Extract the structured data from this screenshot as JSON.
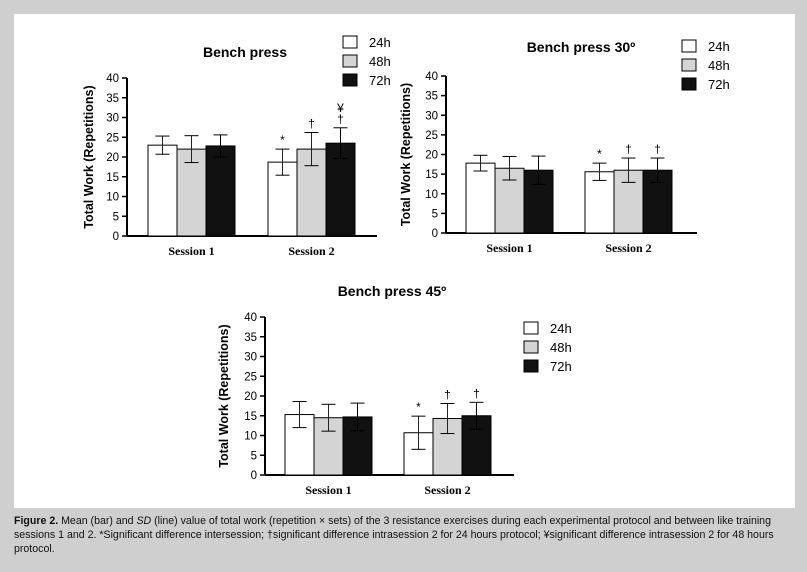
{
  "chart_data": [
    {
      "type": "bar",
      "title": "Bench press",
      "ylabel": "Total Work (Repetitions)",
      "ylim": [
        0,
        40
      ],
      "yticks": [
        0,
        5,
        10,
        15,
        20,
        25,
        30,
        35,
        40
      ],
      "categories": [
        "Session 1",
        "Session 2"
      ],
      "series": [
        {
          "name": "24h",
          "values": [
            23,
            18.7
          ],
          "sd": [
            2.3,
            3.3
          ],
          "annotations": [
            "",
            "*"
          ]
        },
        {
          "name": "48h",
          "values": [
            22,
            22
          ],
          "sd": [
            3.4,
            4.2
          ],
          "annotations": [
            "",
            "†"
          ]
        },
        {
          "name": "72h",
          "values": [
            22.8,
            23.5
          ],
          "sd": [
            2.8,
            3.9
          ],
          "annotations": [
            "",
            "¥\n†"
          ]
        }
      ],
      "legend": "top-right"
    },
    {
      "type": "bar",
      "title": "Bench press 30º",
      "ylabel": "Total Work (Repetitions)",
      "ylim": [
        0,
        40
      ],
      "yticks": [
        0,
        5,
        10,
        15,
        20,
        25,
        30,
        35,
        40
      ],
      "categories": [
        "Session 1",
        "Session 2"
      ],
      "series": [
        {
          "name": "24h",
          "values": [
            17.8,
            15.6
          ],
          "sd": [
            2.0,
            2.2
          ],
          "annotations": [
            "",
            "*"
          ]
        },
        {
          "name": "48h",
          "values": [
            16.5,
            16
          ],
          "sd": [
            3.0,
            3.1
          ],
          "annotations": [
            "",
            "†"
          ]
        },
        {
          "name": "72h",
          "values": [
            16,
            16
          ],
          "sd": [
            3.6,
            3.1
          ],
          "annotations": [
            "",
            "†"
          ]
        }
      ],
      "legend": "top-right"
    },
    {
      "type": "bar",
      "title": "Bench press 45º",
      "ylabel": "Total Work (Repetitions)",
      "ylim": [
        0,
        40
      ],
      "yticks": [
        0,
        5,
        10,
        15,
        20,
        25,
        30,
        35,
        40
      ],
      "categories": [
        "Session 1",
        "Session 2"
      ],
      "series": [
        {
          "name": "24h",
          "values": [
            15.3,
            10.7
          ],
          "sd": [
            3.3,
            4.2
          ],
          "annotations": [
            "",
            "*"
          ]
        },
        {
          "name": "48h",
          "values": [
            14.5,
            14.3
          ],
          "sd": [
            3.4,
            3.8
          ],
          "annotations": [
            "",
            "†"
          ]
        },
        {
          "name": "72h",
          "values": [
            14.7,
            15
          ],
          "sd": [
            3.5,
            3.4
          ],
          "annotations": [
            "",
            "†"
          ]
        }
      ],
      "legend": "top-right"
    }
  ],
  "colors": {
    "series_fill": [
      "#ffffff",
      "#d4d4d4",
      "#111111"
    ],
    "axis": "#000000",
    "page_background": "#cfcfcf",
    "figure_background": "#ffffff"
  },
  "caption": {
    "label": "Figure 2.",
    "text_parts": [
      " Mean (bar) and ",
      "SD",
      " (line) value of total work (repetition × sets) of the 3 resistance exercises during each experimental protocol and between like training sessions 1 and 2. *Significant difference intersession; †significant difference intrasession 2 for 24 hours protocol; ¥significant difference intrasession 2 for 48 hours protocol."
    ]
  }
}
